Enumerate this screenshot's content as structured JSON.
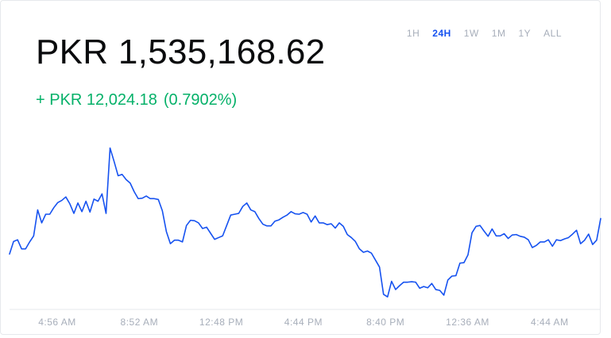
{
  "price": {
    "value": "PKR 1,535,168.62"
  },
  "change": {
    "amount": "+ PKR 12,024.18",
    "percent": "(0.7902%)"
  },
  "ranges": [
    {
      "label": "1H",
      "active": false
    },
    {
      "label": "24H",
      "active": true
    },
    {
      "label": "1W",
      "active": false
    },
    {
      "label": "1M",
      "active": false
    },
    {
      "label": "1Y",
      "active": false
    },
    {
      "label": "ALL",
      "active": false
    }
  ],
  "colors": {
    "line": "#1652f0",
    "positive": "#05b169",
    "axis": "#a7aeba",
    "baseline": "#e6e8ec"
  },
  "chart_data": {
    "type": "line",
    "title": "",
    "xlabel": "",
    "ylabel": "",
    "grid": false,
    "ylim": [
      1521000,
      1543000
    ],
    "x_ticks": [
      "4:56 AM",
      "8:52 AM",
      "12:48 PM",
      "4:44 PM",
      "8:40 PM",
      "12:36 AM",
      "4:44 AM"
    ],
    "series": [
      {
        "values": [
          1527400,
          1528850,
          1529050,
          1528000,
          1528000,
          1528800,
          1529500,
          1532500,
          1531000,
          1532000,
          1532000,
          1532750,
          1533350,
          1533600,
          1534000,
          1533200,
          1532100,
          1533300,
          1532300,
          1533500,
          1532250,
          1533750,
          1533500,
          1534350,
          1532100,
          1539650,
          1538100,
          1536450,
          1536600,
          1536000,
          1535600,
          1534600,
          1533800,
          1533850,
          1534100,
          1533800,
          1533800,
          1533700,
          1532400,
          1530000,
          1528600,
          1529000,
          1529000,
          1528800,
          1530700,
          1531300,
          1531250,
          1531000,
          1530350,
          1530500,
          1529800,
          1529100,
          1529300,
          1529500,
          1530700,
          1531900,
          1532000,
          1532100,
          1532900,
          1533300,
          1532500,
          1532300,
          1531500,
          1530850,
          1530650,
          1530650,
          1531200,
          1531350,
          1531650,
          1531900,
          1532300,
          1532050,
          1532000,
          1532200,
          1532000,
          1531100,
          1531800,
          1531000,
          1531000,
          1530800,
          1530900,
          1530400,
          1531000,
          1530600,
          1529650,
          1529300,
          1528850,
          1528000,
          1527600,
          1527750,
          1527500,
          1526700,
          1525900,
          1522750,
          1522450,
          1524250,
          1523300,
          1523750,
          1524150,
          1524150,
          1524200,
          1524150,
          1523450,
          1523650,
          1523500,
          1524000,
          1523300,
          1523200,
          1522650,
          1524400,
          1524850,
          1524900,
          1526350,
          1526400,
          1527300,
          1529850,
          1530600,
          1530700,
          1530050,
          1529450,
          1530300,
          1529500,
          1529500,
          1529750,
          1529200,
          1529600,
          1529650,
          1529450,
          1529350,
          1529050,
          1528150,
          1528400,
          1528800,
          1528800,
          1529050,
          1528300,
          1529050,
          1528950,
          1529150,
          1529300,
          1529700,
          1530150,
          1528600,
          1529000,
          1529700,
          1528500,
          1529000,
          1531500
        ]
      }
    ]
  }
}
